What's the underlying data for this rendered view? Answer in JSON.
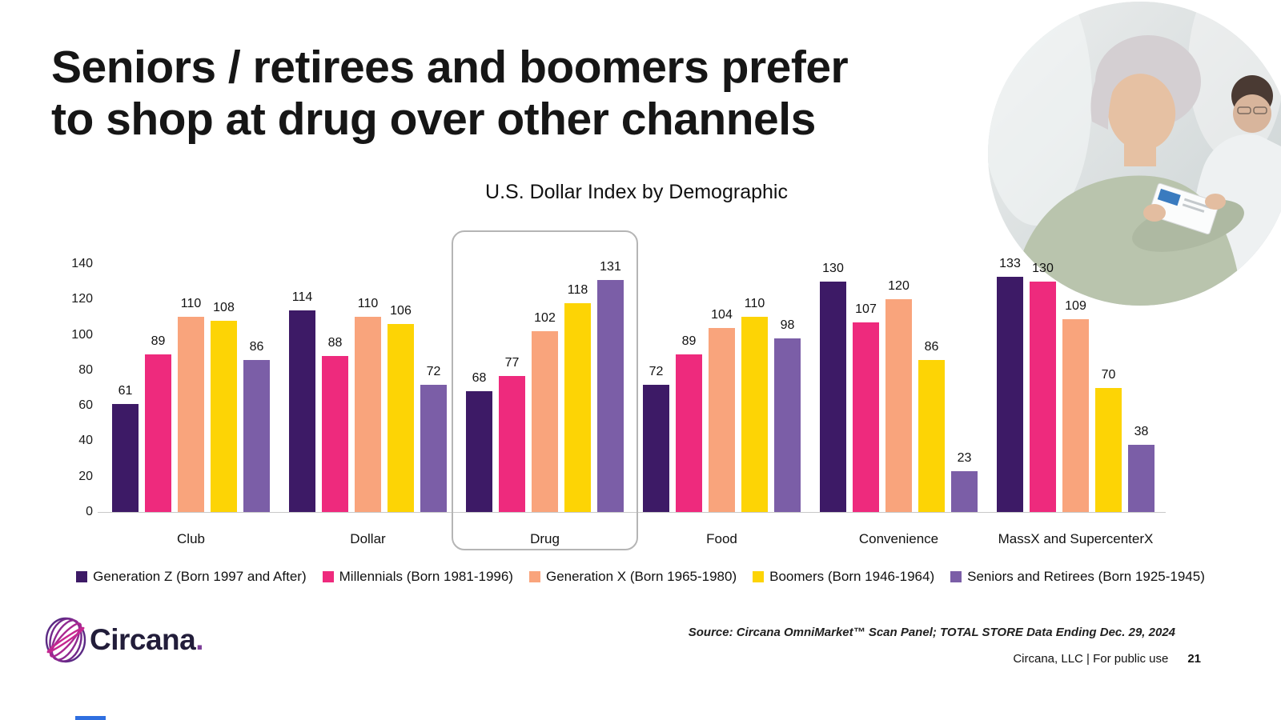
{
  "slide": {
    "title_line1": "Seniors / retirees and boomers prefer",
    "title_line2": "to shop at drug over other channels"
  },
  "chart_data": {
    "type": "bar",
    "title": "U.S. Dollar Index by Demographic",
    "categories": [
      "Club",
      "Dollar",
      "Drug",
      "Food",
      "Convenience",
      "MassX and SupercenterX"
    ],
    "series": [
      {
        "name": "Generation Z (Born 1997 and After)",
        "color": "#3d1a66",
        "values": [
          61,
          114,
          68,
          72,
          130,
          133
        ]
      },
      {
        "name": "Millennials (Born 1981-1996)",
        "color": "#ee2a7d",
        "values": [
          89,
          88,
          77,
          89,
          107,
          130
        ]
      },
      {
        "name": "Generation X (Born 1965-1980)",
        "color": "#f9a47c",
        "values": [
          110,
          110,
          102,
          104,
          120,
          109
        ]
      },
      {
        "name": "Boomers (Born 1946-1964)",
        "color": "#fdd405",
        "values": [
          108,
          106,
          118,
          110,
          86,
          70
        ]
      },
      {
        "name": "Seniors and Retirees (Born 1925-1945)",
        "color": "#7b5ea7",
        "values": [
          86,
          72,
          131,
          98,
          23,
          38
        ]
      }
    ],
    "y_ticks": [
      0,
      20,
      40,
      60,
      80,
      100,
      120,
      140
    ],
    "ylim": [
      0,
      140
    ],
    "grid": false,
    "legend_position": "bottom",
    "highlight_category": "Drug",
    "highlight_border_color": "#b5b5b5"
  },
  "images": {
    "hero": "photo-woman-reading-product-package-in-pharmacy"
  },
  "footer": {
    "logo_text": "Circana",
    "logo_dot": ".",
    "source": "Source: Circana OmniMarket™ Scan Panel; TOTAL STORE Data Ending Dec. 29, 2024",
    "company_line": "Circana, LLC |  For public use",
    "page_number": "21"
  }
}
